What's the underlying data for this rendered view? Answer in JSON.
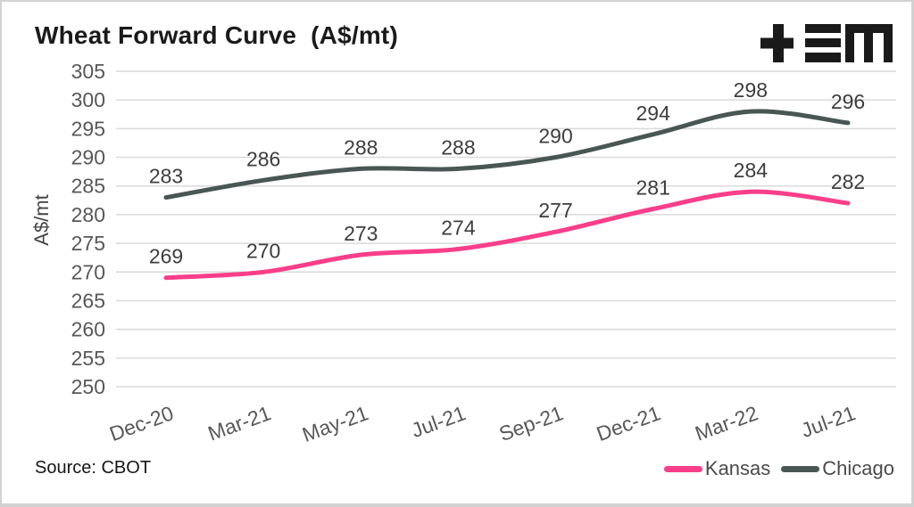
{
  "header": {
    "title": "Wheat Forward Curve  (A$/mt)",
    "logo": "tem-logo"
  },
  "footer": {
    "source": "Source: CBOT"
  },
  "chart_data": {
    "type": "line",
    "title": "Wheat Forward Curve (A$/mt)",
    "categories": [
      "Dec-20",
      "Mar-21",
      "May-21",
      "Jul-21",
      "Sep-21",
      "Dec-21",
      "Mar-22",
      "Jul-21"
    ],
    "series": [
      {
        "name": "Kansas",
        "color": "#f93e8a",
        "values": [
          269,
          270,
          273,
          274,
          277,
          281,
          284,
          282
        ]
      },
      {
        "name": "Chicago",
        "color": "#485654",
        "values": [
          283,
          286,
          288,
          288,
          290,
          294,
          298,
          296
        ]
      }
    ],
    "xlabel": "",
    "ylabel": "A$/mt",
    "ylim": [
      250,
      305
    ],
    "ytick_step": 5,
    "grid": "horizontal",
    "data_labels": true,
    "legend_position": "bottom-right",
    "style": {
      "gridline_color": "#dadada",
      "tick_text_color": "#58585a",
      "data_label_color": "#3d3d3d",
      "axis_label_color": "#454545",
      "line_width": 5,
      "xtick_angle_deg": -20
    }
  }
}
